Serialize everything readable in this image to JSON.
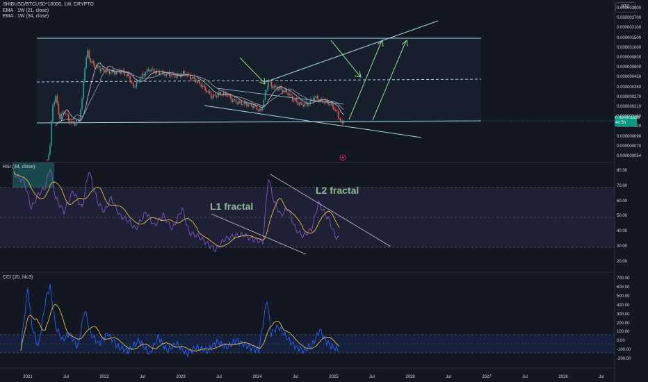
{
  "header": {
    "symbol_line": "SHIBUSD/BTCUSD*10000, 1W, CRYPTO",
    "ema1": "EMA · 1W (21, close)",
    "ema2": "EMA · 1W (34, close)",
    "currency_button": "BTC"
  },
  "price_axis": {
    "ticks": [
      "0.000003000",
      "0.000002700",
      "0.000002100",
      "0.000001500",
      "0.000001000",
      "0.000000800",
      "0.000000600",
      "0.000000450",
      "0.000000350",
      "0.000000270",
      "0.000000210",
      "0.000000160",
      "0.000000120",
      "0.000000090",
      "0.000000070",
      "0.000000054"
    ],
    "current_price": "0.000001639",
    "current_sub": "4d 5h"
  },
  "rsi": {
    "label": "RSI (34, close)",
    "ticks": [
      "80.00",
      "70.00",
      "60.00",
      "50.00",
      "40.00",
      "30.00",
      "20.00"
    ]
  },
  "cci": {
    "label": "CCI (20, hlc3)",
    "ticks": [
      "700.00",
      "600.00",
      "500.00",
      "400.00",
      "300.00",
      "200.00",
      "100.00",
      "0.00",
      "-100.00",
      "-200.00"
    ]
  },
  "annotations": {
    "l1": "L1 fractal",
    "l2": "L2 fractal"
  },
  "time_axis": [
    "2021",
    "Jul",
    "2022",
    "Jul",
    "2023",
    "Jul",
    "2024",
    "Jul",
    "2025",
    "Jul",
    "2026",
    "Jul",
    "2027",
    "Jul",
    "2028",
    "Jul"
  ],
  "colors": {
    "background": "#131722",
    "up": "#26a69a",
    "down": "#ef5350",
    "rsi_line": "#7e57c2",
    "rsi_ma": "#e6c243",
    "cci_line": "#2962ff",
    "cci_ma": "#e6c243",
    "drawing": "#a5d6e8",
    "arrow": "#8ee08e"
  }
}
